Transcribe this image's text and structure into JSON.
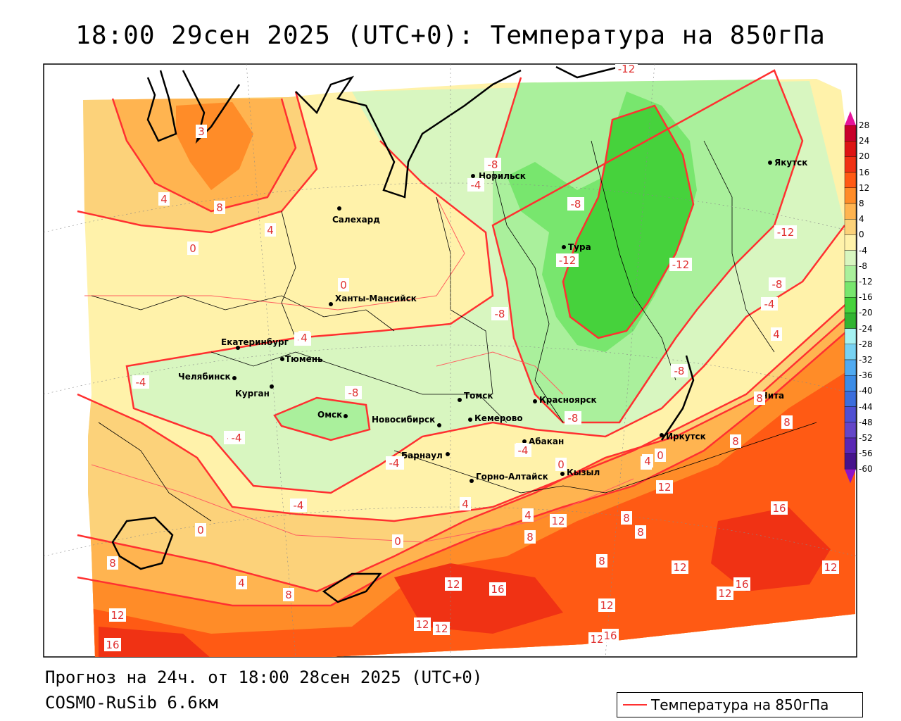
{
  "title": "18:00 29сен 2025 (UTC+0): Температура на 850гПа",
  "forecast_line": "Прогноз на 24ч. от 18:00 28сен 2025 (UTC+0)",
  "model_line": "COSMO-RuSib 6.6км",
  "legend_label": "Температура на 850гПа",
  "colorbar": {
    "ticks": [
      "28",
      "24",
      "20",
      "16",
      "12",
      "8",
      "4",
      "0",
      "-4",
      "-8",
      "-12",
      "-16",
      "-20",
      "-24",
      "-28",
      "-32",
      "-36",
      "-40",
      "-44",
      "-48",
      "-52",
      "-56",
      "-60"
    ],
    "colors": [
      "#c8002a",
      "#dc1414",
      "#f03214",
      "#ff5a14",
      "#ff8c28",
      "#ffb450",
      "#fcd27a",
      "#fff2aa",
      "#d8f6c0",
      "#aaf09c",
      "#78e66e",
      "#46d23c",
      "#32b432",
      "#a6f2f2",
      "#78d2f2",
      "#50aaf0",
      "#3c8ce6",
      "#3c6edc",
      "#5050d2",
      "#6446c8",
      "#5a28b4",
      "#46148c"
    ],
    "top_cap_color": "#e6149a",
    "bottom_cap_color": "#8c14c8"
  },
  "cities": [
    {
      "name": "Норильск"
    },
    {
      "name": "Якутск"
    },
    {
      "name": "Салехард"
    },
    {
      "name": "Тура"
    },
    {
      "name": "Ханты-Мансийск"
    },
    {
      "name": "Екатеринбург"
    },
    {
      "name": "Тюмень"
    },
    {
      "name": "Челябинск"
    },
    {
      "name": "Курган"
    },
    {
      "name": "Омск"
    },
    {
      "name": "Новосибирск"
    },
    {
      "name": "Томск"
    },
    {
      "name": "Кемерово"
    },
    {
      "name": "Красноярск"
    },
    {
      "name": "Барнаул"
    },
    {
      "name": "Абакан"
    },
    {
      "name": "Иркутск"
    },
    {
      "name": "Чита"
    },
    {
      "name": "Горно-Алтайск"
    },
    {
      "name": "Кызыл"
    }
  ],
  "isotherm_labels": [
    "-12",
    "-8",
    "-4",
    "-8",
    "-12",
    "-12",
    "-12",
    "-8",
    "-4",
    "0",
    "4",
    "-8",
    "-8",
    "-4",
    "-4",
    "-8",
    "-4",
    "-4",
    "0",
    "4",
    "8",
    "8",
    "8",
    "12",
    "16",
    "12",
    "16",
    "8",
    "8",
    "4",
    "12",
    "4",
    "8",
    "4",
    "0",
    "12",
    "12",
    "8",
    "12",
    "16",
    "12",
    "12",
    "12",
    "16",
    "12",
    "0",
    "4",
    "8",
    "12",
    "16",
    "8",
    "4",
    "0",
    "4",
    "4",
    "-4",
    "-4",
    "-8",
    "0",
    "4",
    "-4",
    "-4",
    "8",
    "3"
  ]
}
